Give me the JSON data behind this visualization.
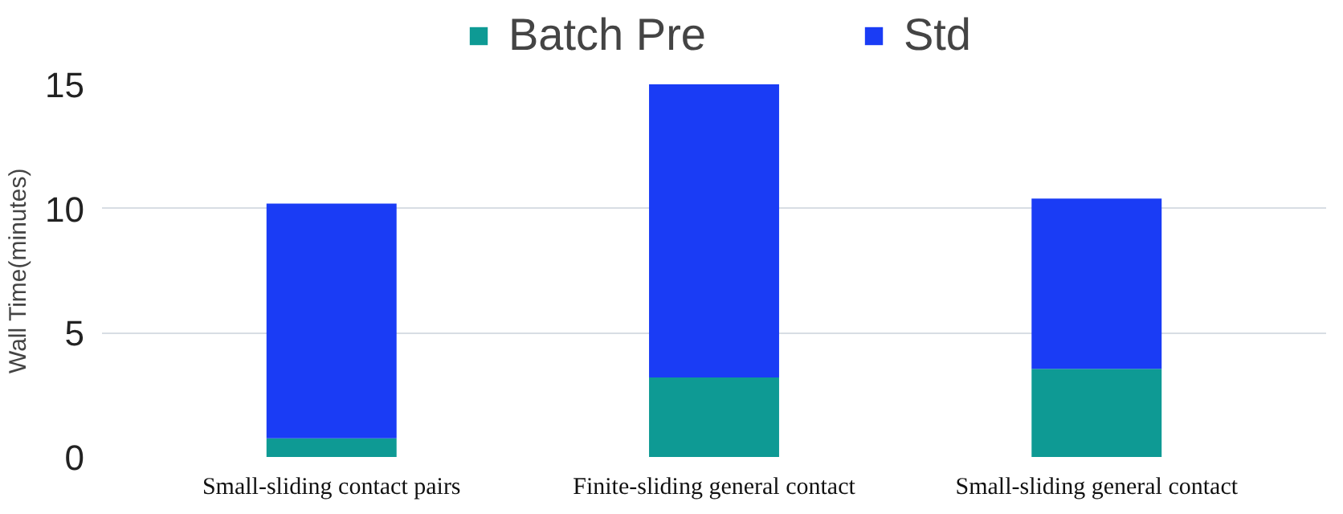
{
  "chart_data": {
    "type": "bar",
    "stacked": true,
    "ylabel": "Wall Time(minutes)",
    "categories": [
      "Small-sliding contact pairs",
      "Finite-sliding general contact",
      "Small-sliding general contact"
    ],
    "series": [
      {
        "name": "Batch Pre",
        "color": "#0e9a94",
        "values": [
          0.75,
          3.2,
          3.55
        ]
      },
      {
        "name": "Std",
        "color": "#1a3cf5",
        "values": [
          9.45,
          11.8,
          6.85
        ]
      }
    ],
    "ylim": [
      0,
      15
    ],
    "yticks": [
      0,
      5,
      10,
      15
    ],
    "grid": "y",
    "legend": "top"
  }
}
